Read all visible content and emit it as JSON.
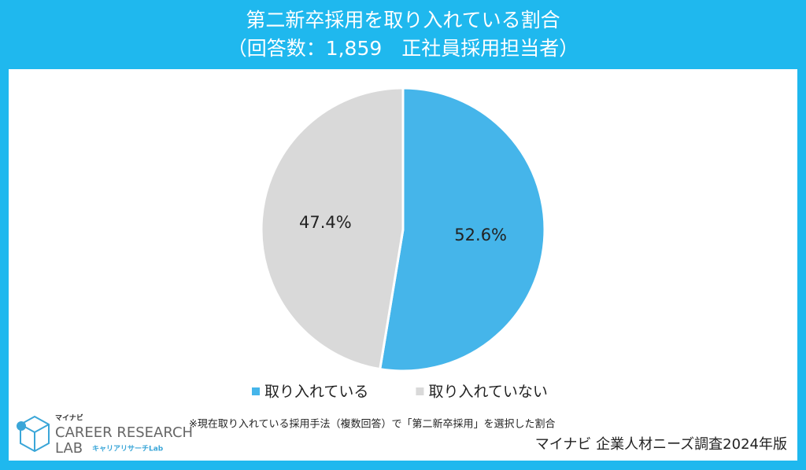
{
  "chart_data": {
    "type": "pie",
    "title": "第二新卒採用を取り入れている割合",
    "subtitle": "（回答数：1,859　正社員採用担当者）",
    "categories": [
      "取り入れている",
      "取り入れていない"
    ],
    "values": [
      52.6,
      47.4
    ],
    "value_labels": [
      "52.6%",
      "47.4%"
    ],
    "colors": [
      "#45b5ea",
      "#d9d9d9"
    ],
    "legend": "bottom",
    "footnote": "※現在取り入れている採用手法（複数回答）で「第二新卒採用」を選択した割合",
    "source": "マイナビ 企業人材ニーズ調査2024年版"
  },
  "logo": {
    "brand": "マイナビ",
    "line1": "CAREER RESEARCH",
    "line2": "LAB",
    "tag": "キャリアリサーチLab"
  }
}
